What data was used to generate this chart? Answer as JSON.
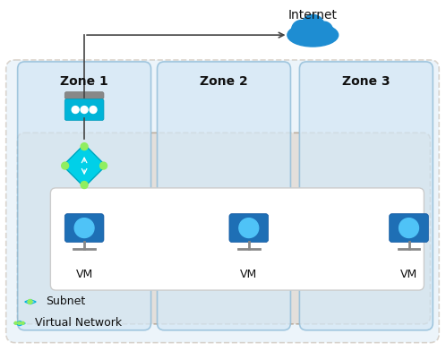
{
  "bg_color": "#ffffff",
  "zone_bg": "#d6e8f5",
  "zone_border": "#90bcd8",
  "subnet_bg": "#e2ddd8",
  "subnet_border": "#b8a898",
  "inner_box_bg": "#ffffff",
  "inner_box_border": "#cccccc",
  "zones": [
    "Zone 1",
    "Zone 2",
    "Zone 3"
  ],
  "cloud_color": "#1e8dd2",
  "vm_color": "#1e6fb5",
  "arrow_color": "#444444",
  "text_color": "#111111",
  "zone_label_color": "#111111",
  "nat_top_color": "#888888",
  "nat_bottom_color": "#00b4d8",
  "router_color": "#00d0e8",
  "subnet_icon_color": "#00b4d8",
  "vnet_icon_color": "#00b4d8"
}
